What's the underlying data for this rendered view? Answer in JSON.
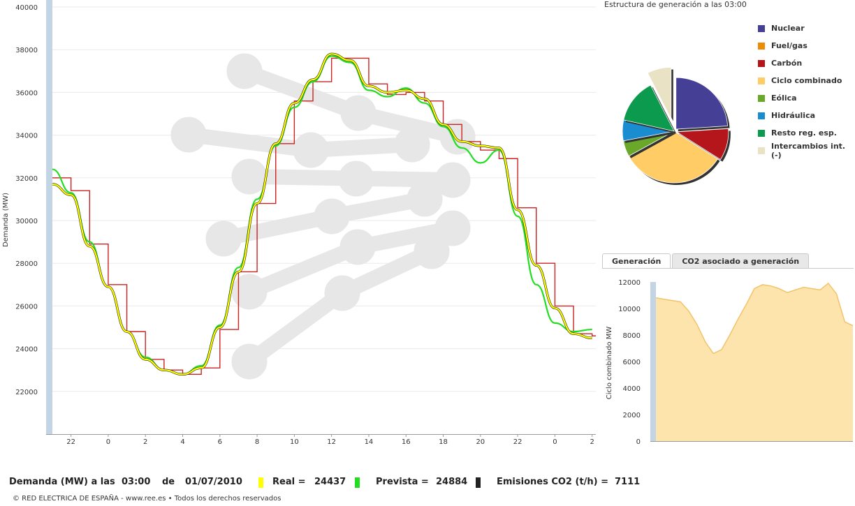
{
  "main_chart": {
    "ylabel": "Demanda (MW)",
    "y_ticks": [
      "22000",
      "24000",
      "26000",
      "28000",
      "30000",
      "32000",
      "34000",
      "36000",
      "38000",
      "40000"
    ],
    "x_ticks": [
      "22",
      "0",
      "2",
      "4",
      "6",
      "8",
      "10",
      "12",
      "14",
      "16",
      "18",
      "20",
      "22",
      "0",
      "2"
    ]
  },
  "pie": {
    "title": "Estructura de generación a las 03:00",
    "legend": [
      "Nuclear",
      "Fuel/gas",
      "Carbón",
      "Ciclo combinado",
      "Eólica",
      "Hidráulica",
      "Resto reg. esp.",
      "Intercambios int. (-)"
    ]
  },
  "tabs": {
    "generation": "Generación",
    "co2": "CO2 asociado a generación"
  },
  "small_chart": {
    "ylabel": "Ciclo combinado MW",
    "y_ticks": [
      "0",
      "2000",
      "4000",
      "6000",
      "8000",
      "10000",
      "12000"
    ]
  },
  "summary": {
    "label": "Demanda (MW) a las",
    "time": "03:00",
    "de": "de",
    "date": "01/07/2010",
    "real_label": "Real =",
    "real_value": "24437",
    "prevista_label": "Prevista =",
    "prevista_value": "24884",
    "co2_label": "Emisiones CO2 (t/h) =",
    "co2_value": "7111"
  },
  "footer": "© RED ELECTRICA DE ESPAÑA - www.ree.es • Todos los derechos reservados",
  "colors": {
    "real": "#ffff00",
    "prevista": "#22dd22",
    "programada": "#cc2222",
    "emisiones": "#222222",
    "nuclear": "#463f96",
    "fuel_gas": "#ee8b00",
    "carbon": "#b4161c",
    "ciclo_combinado": "#ffcc66",
    "eolica": "#6aa82a",
    "hidraulica": "#1a8cd0",
    "resto_reg_esp": "#0c9a4e",
    "intercambios": "#e9e2c4",
    "area_fill": "#fde3ac",
    "area_line": "#f2c46a"
  },
  "chart_data": [
    {
      "type": "line",
      "ylabel": "Demanda (MW)",
      "ylim": [
        20000,
        40000
      ],
      "x_tick_labels": [
        "22",
        "0",
        "2",
        "4",
        "6",
        "8",
        "10",
        "12",
        "14",
        "16",
        "18",
        "20",
        "22",
        "0",
        "2"
      ],
      "x_hours": [
        0,
        1,
        2,
        3,
        4,
        5,
        6,
        7,
        8,
        9,
        10,
        11,
        12,
        13,
        14,
        15,
        16,
        17,
        18,
        19,
        20,
        21,
        22,
        23,
        24,
        25,
        26,
        27,
        28,
        29
      ],
      "series": [
        {
          "values": [
            31700,
            31200,
            28800,
            26900,
            24800,
            23500,
            23000,
            22800,
            23100,
            25000,
            27600,
            30800,
            33600,
            35500,
            36600,
            37800,
            37500,
            36300,
            36000,
            36100,
            35700,
            34500,
            33700,
            33500,
            33400,
            30500,
            27900,
            25900,
            24700,
            24500
          ]
        },
        {
          "values": [
            32400,
            31300,
            29000,
            26900,
            24800,
            23600,
            23000,
            22800,
            23200,
            25100,
            27800,
            31000,
            33500,
            35300,
            36500,
            37700,
            37400,
            36100,
            35800,
            36200,
            35500,
            34400,
            33400,
            32700,
            33300,
            30200,
            27000,
            25200,
            24800,
            24900
          ]
        },
        {
          "values": [
            32000,
            31400,
            28900,
            27000,
            24800,
            23500,
            23000,
            22800,
            23100,
            24900,
            27600,
            30800,
            33600,
            35600,
            36500,
            37600,
            37600,
            36400,
            35900,
            36000,
            35600,
            34500,
            33700,
            33300,
            32900,
            30600,
            28000,
            26000,
            24700,
            24600
          ]
        }
      ]
    },
    {
      "type": "pie",
      "categories": [
        "Nuclear",
        "Fuel/gas",
        "Carbón",
        "Ciclo combinado",
        "Eólica",
        "Hidráulica",
        "Resto reg. esp.",
        "Intercambios int. (-)"
      ],
      "values": [
        24,
        0,
        10,
        33,
        5,
        6.5,
        14,
        7.5
      ]
    },
    {
      "type": "area",
      "ylabel": "Ciclo combinado MW",
      "ylim": [
        0,
        12000
      ],
      "values": [
        10800,
        10700,
        10600,
        10500,
        9800,
        8800,
        7500,
        6600,
        6900,
        8000,
        9200,
        10300,
        11500,
        11800,
        11700,
        11500,
        11200,
        11400,
        11600,
        11500,
        11400,
        11900,
        11100,
        9000,
        8700
      ]
    }
  ]
}
